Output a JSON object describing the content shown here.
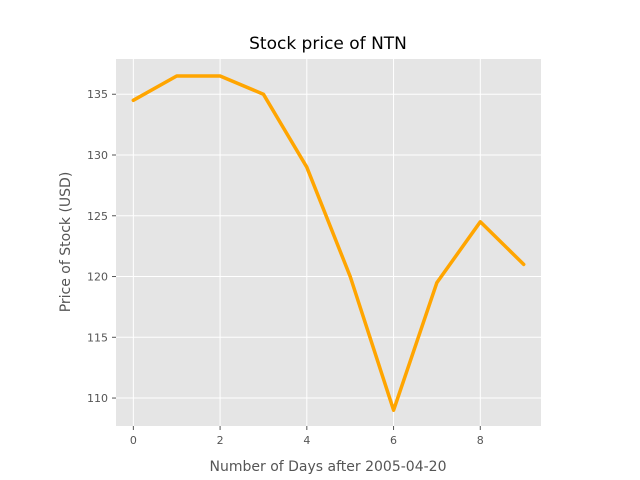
{
  "chart_data": {
    "type": "line",
    "title": "Stock price of NTN",
    "xlabel": "Number of Days after 2005-04-20",
    "ylabel": "Price of Stock (USD)",
    "x": [
      0,
      1,
      2,
      3,
      4,
      5,
      6,
      7,
      8,
      9
    ],
    "series": [
      {
        "values": [
          134.5,
          136.5,
          136.5,
          135.0,
          129.0,
          120.0,
          109.0,
          119.5,
          124.5,
          121.0
        ]
      }
    ],
    "xlim": [
      -0.4,
      9.4
    ],
    "ylim": [
      107.7,
      137.9
    ],
    "xticks": [
      0,
      2,
      4,
      6,
      8
    ],
    "yticks": [
      110,
      115,
      120,
      125,
      130,
      135
    ],
    "grid": true,
    "line_color": "#ffa500",
    "plot_background": "#e5e5e5",
    "grid_color": "#ffffff"
  }
}
